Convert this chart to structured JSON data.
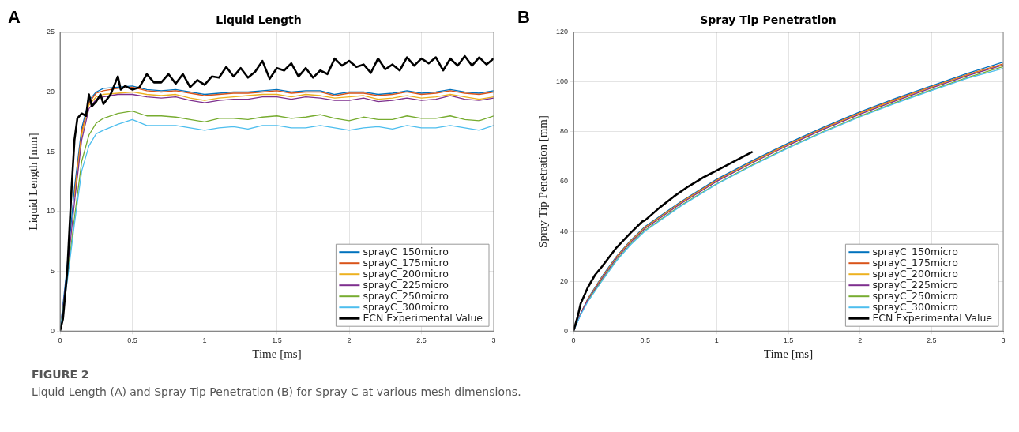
{
  "chart_data": [
    {
      "type": "line",
      "title": "Liquid Length",
      "xlabel": "Time [ms]",
      "ylabel": "Liquid Length [mm]",
      "annotations": [
        "A",
        "FIGURE 2",
        "Liquid Length (A) and Spray Tip Penetration (B) for Spray C at various mesh dimensions."
      ],
      "x": [
        0,
        0.05,
        0.1,
        0.15,
        0.2,
        0.25,
        0.3,
        0.4,
        0.5,
        0.6,
        0.7,
        0.8,
        0.9,
        1.0,
        1.1,
        1.2,
        1.3,
        1.4,
        1.5,
        1.6,
        1.7,
        1.8,
        1.9,
        2.0,
        2.1,
        2.2,
        2.3,
        2.4,
        2.5,
        2.6,
        2.7,
        2.8,
        2.9,
        3.0
      ],
      "xlim": [
        0,
        3
      ],
      "xticks": [
        0,
        0.5,
        1,
        1.5,
        2,
        2.5,
        3
      ],
      "ylim": [
        0,
        25
      ],
      "yticks": [
        0,
        5,
        10,
        15,
        20,
        25
      ],
      "grid": true,
      "legend": "bottom right",
      "series": [
        {
          "name": "sprayC_150micro",
          "color": "#0072bd",
          "values": [
            0,
            5.5,
            12,
            17,
            19.3,
            20,
            20.3,
            20.4,
            20.5,
            20.2,
            20.1,
            20.2,
            20.0,
            19.8,
            19.9,
            20.0,
            20.0,
            20.1,
            20.2,
            20.0,
            20.1,
            20.1,
            19.8,
            20.0,
            20.0,
            19.8,
            19.9,
            20.1,
            19.9,
            20.0,
            20.2,
            20.0,
            19.9,
            20.1
          ]
        },
        {
          "name": "sprayC_175micro",
          "color": "#d95319",
          "values": [
            null,
            null,
            11.5,
            16.7,
            19.1,
            19.9,
            20.1,
            20.3,
            20.4,
            20.1,
            20.0,
            20.1,
            19.9,
            19.7,
            19.8,
            19.9,
            19.9,
            20.0,
            20.1,
            19.9,
            20.0,
            20.0,
            19.7,
            19.9,
            19.9,
            19.7,
            19.8,
            20.0,
            19.8,
            19.9,
            20.1,
            19.9,
            19.8,
            20.0
          ]
        },
        {
          "name": "sprayC_200micro",
          "color": "#edb120",
          "values": [
            null,
            null,
            11.2,
            16.4,
            18.9,
            19.6,
            19.8,
            19.9,
            20.0,
            19.8,
            19.7,
            19.8,
            19.5,
            19.3,
            19.5,
            19.6,
            19.7,
            19.8,
            19.8,
            19.6,
            19.8,
            19.7,
            19.5,
            19.6,
            19.7,
            19.4,
            19.5,
            19.7,
            19.5,
            19.6,
            19.8,
            19.6,
            19.4,
            19.6
          ]
        },
        {
          "name": "sprayC_225micro",
          "color": "#7e2f8e",
          "values": [
            0,
            5.0,
            10.8,
            16.0,
            18.6,
            19.4,
            19.6,
            19.8,
            19.8,
            19.6,
            19.5,
            19.6,
            19.3,
            19.1,
            19.3,
            19.4,
            19.4,
            19.6,
            19.6,
            19.4,
            19.6,
            19.5,
            19.3,
            19.3,
            19.5,
            19.2,
            19.3,
            19.5,
            19.3,
            19.4,
            19.7,
            19.4,
            19.3,
            19.5
          ]
        },
        {
          "name": "sprayC_250micro",
          "color": "#77ac30",
          "values": [
            0,
            4.5,
            9.5,
            14.2,
            16.4,
            17.4,
            17.8,
            18.2,
            18.4,
            18.0,
            18.0,
            17.9,
            17.7,
            17.5,
            17.8,
            17.8,
            17.7,
            17.9,
            18.0,
            17.8,
            17.9,
            18.1,
            17.8,
            17.6,
            17.9,
            17.7,
            17.7,
            18.0,
            17.8,
            17.8,
            18.0,
            17.7,
            17.6,
            18.0
          ]
        },
        {
          "name": "sprayC_300micro",
          "color": "#4dbeee",
          "values": [
            0,
            4.2,
            9.0,
            13.4,
            15.5,
            16.5,
            16.8,
            17.3,
            17.7,
            17.2,
            17.2,
            17.2,
            17.0,
            16.8,
            17.0,
            17.1,
            16.9,
            17.2,
            17.2,
            17.0,
            17.0,
            17.2,
            17.0,
            16.8,
            17.0,
            17.1,
            16.9,
            17.2,
            17.0,
            17.0,
            17.2,
            17.0,
            16.8,
            17.2
          ]
        },
        {
          "name": "ECN Experimental Value",
          "color": "#000000",
          "x": [
            0,
            0.02,
            0.05,
            0.08,
            0.1,
            0.12,
            0.15,
            0.18,
            0.2,
            0.22,
            0.25,
            0.28,
            0.3,
            0.35,
            0.4,
            0.42,
            0.45,
            0.5,
            0.55,
            0.6,
            0.65,
            0.7,
            0.75,
            0.8,
            0.85,
            0.9,
            0.95,
            1.0,
            1.05,
            1.1,
            1.15,
            1.2,
            1.25,
            1.3,
            1.35,
            1.4,
            1.45,
            1.5,
            1.55,
            1.6,
            1.65,
            1.7,
            1.75,
            1.8,
            1.85,
            1.9,
            1.95,
            2.0,
            2.05,
            2.1,
            2.15,
            2.2,
            2.25,
            2.3,
            2.35,
            2.4,
            2.45,
            2.5,
            2.55,
            2.6,
            2.65,
            2.7,
            2.75,
            2.8,
            2.85,
            2.9,
            2.95,
            3.0
          ],
          "values": [
            0,
            1,
            5,
            12,
            16,
            17.8,
            18.2,
            18,
            19.8,
            18.8,
            19.2,
            19.8,
            19,
            19.8,
            21.3,
            20.2,
            20.5,
            20.2,
            20.4,
            21.5,
            20.8,
            20.8,
            21.5,
            20.7,
            21.5,
            20.4,
            21,
            20.6,
            21.3,
            21.2,
            22.1,
            21.3,
            22,
            21.2,
            21.7,
            22.6,
            21.1,
            22,
            21.8,
            22.4,
            21.3,
            22,
            21.2,
            21.8,
            21.5,
            22.8,
            22.2,
            22.6,
            22.1,
            22.3,
            21.6,
            22.8,
            21.9,
            22.3,
            21.8,
            22.9,
            22.2,
            22.8,
            22.4,
            22.9,
            21.8,
            22.8,
            22.2,
            23,
            22.2,
            22.9,
            22.3,
            22.8
          ]
        }
      ]
    },
    {
      "type": "line",
      "title": "Spray Tip Penetration",
      "xlabel": "Time [ms]",
      "ylabel": "Spray Tip Penetration [mm]",
      "annotations": [
        "B"
      ],
      "x": [
        0,
        0.05,
        0.1,
        0.2,
        0.3,
        0.4,
        0.5,
        0.75,
        1.0,
        1.25,
        1.5,
        1.75,
        2.0,
        2.25,
        2.5,
        2.75,
        3.0
      ],
      "xlim": [
        0,
        3
      ],
      "xticks": [
        0,
        0.5,
        1,
        1.5,
        2,
        2.5,
        3
      ],
      "ylim": [
        0,
        120
      ],
      "yticks": [
        0,
        20,
        40,
        60,
        80,
        100,
        120
      ],
      "grid": true,
      "legend": "bottom right",
      "series": [
        {
          "name": "sprayC_150micro",
          "color": "#0072bd",
          "values": [
            0,
            7,
            13,
            22,
            30,
            36.5,
            42,
            52,
            61,
            68.5,
            75.5,
            82,
            88,
            93.5,
            98.5,
            103.5,
            108
          ]
        },
        {
          "name": "sprayC_175micro",
          "color": "#d95319",
          "values": [
            0,
            7,
            12.8,
            21.7,
            29.7,
            36.2,
            41.7,
            51.7,
            60.6,
            68.1,
            75.1,
            81.6,
            87.6,
            93.1,
            98.1,
            103,
            107.3
          ]
        },
        {
          "name": "sprayC_200micro",
          "color": "#edb120",
          "values": [
            null,
            null,
            12.6,
            21.5,
            29.5,
            36,
            41.5,
            51.5,
            60.4,
            67.9,
            74.9,
            81.4,
            87.4,
            92.8,
            97.9,
            102.8,
            107
          ]
        },
        {
          "name": "sprayC_225micro",
          "color": "#7e2f8e",
          "values": [
            0,
            6.8,
            12.4,
            21.2,
            29.2,
            35.7,
            41.2,
            51.2,
            60.1,
            67.6,
            74.6,
            81.1,
            87.1,
            92.5,
            97.6,
            102.5,
            106.8
          ]
        },
        {
          "name": "sprayC_250micro",
          "color": "#77ac30",
          "values": [
            null,
            null,
            12,
            20.5,
            28.5,
            35,
            40.5,
            50.5,
            59.2,
            66.8,
            73.8,
            80.3,
            86.3,
            91.8,
            96.9,
            101.8,
            106.2
          ]
        },
        {
          "name": "sprayC_300micro",
          "color": "#4dbeee",
          "values": [
            0,
            6.5,
            11.8,
            20.2,
            28.2,
            34.7,
            40.2,
            50.2,
            59,
            66.5,
            73.5,
            80,
            86,
            91.5,
            96.6,
            101.5,
            105.5
          ]
        },
        {
          "name": "ECN Experimental Value",
          "color": "#000000",
          "x": [
            0,
            0.03,
            0.05,
            0.1,
            0.15,
            0.2,
            0.3,
            0.4,
            0.48,
            0.5,
            0.6,
            0.7,
            0.8,
            0.9,
            1.0,
            1.1,
            1.2,
            1.25
          ],
          "values": [
            0,
            6,
            11,
            17.5,
            22.5,
            26,
            33.5,
            39.5,
            44,
            44.5,
            49.5,
            54,
            58,
            61.5,
            64.5,
            67.5,
            70.5,
            72
          ]
        }
      ]
    }
  ]
}
